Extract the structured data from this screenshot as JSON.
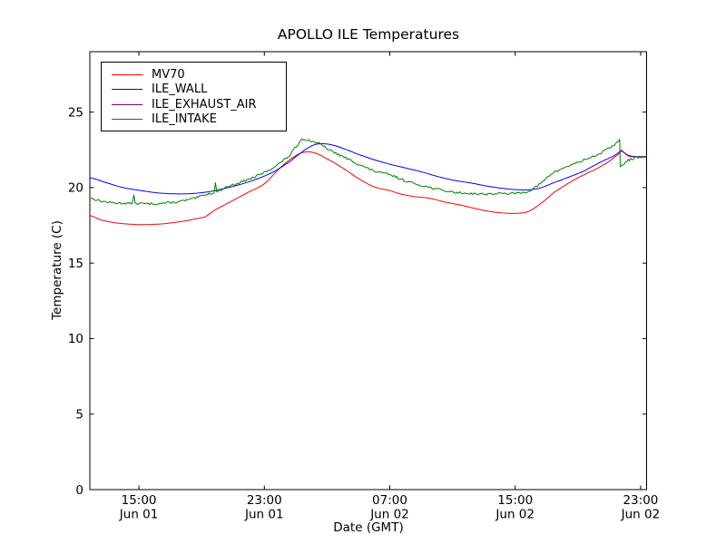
{
  "chart_data": {
    "type": "line",
    "title": "APOLLO ILE Temperatures",
    "xlabel": "Date (GMT)",
    "ylabel": "Temperature (C)",
    "background": "#ffffff",
    "frame_color": "#000000",
    "grid": false,
    "legend_position": "upper-left",
    "x_unit_hours_since": "Jun 01 00:00 GMT",
    "xlim": [
      11.87,
      47.38
    ],
    "ylim": [
      0,
      29
    ],
    "yticks": [
      0,
      5,
      10,
      15,
      20,
      25
    ],
    "xticks": [
      {
        "t": 15,
        "time": "15:00",
        "date": "Jun 01"
      },
      {
        "t": 23,
        "time": "23:00",
        "date": "Jun 01"
      },
      {
        "t": 31,
        "time": "07:00",
        "date": "Jun 02"
      },
      {
        "t": 39,
        "time": "15:00",
        "date": "Jun 02"
      },
      {
        "t": 47,
        "time": "23:00",
        "date": "Jun 02"
      }
    ],
    "series": [
      {
        "name": "MV70",
        "color": "#ff0000",
        "noise": 0,
        "points": [
          [
            11.87,
            18.15
          ],
          [
            12.6,
            17.85
          ],
          [
            13.6,
            17.65
          ],
          [
            15.0,
            17.55
          ],
          [
            16.5,
            17.6
          ],
          [
            18.0,
            17.8
          ],
          [
            19.2,
            18.05,
            1
          ],
          [
            19.9,
            18.55
          ],
          [
            20.9,
            19.1
          ],
          [
            22.0,
            19.7
          ],
          [
            23.0,
            20.25
          ],
          [
            24.0,
            21.3
          ],
          [
            25.0,
            22.1
          ],
          [
            25.6,
            22.35
          ],
          [
            26.2,
            22.3
          ],
          [
            27.0,
            21.9
          ],
          [
            28.0,
            21.3
          ],
          [
            29.0,
            20.6
          ],
          [
            30.0,
            20.05
          ],
          [
            31.0,
            19.8
          ],
          [
            31.8,
            19.55
          ],
          [
            32.6,
            19.4
          ],
          [
            33.5,
            19.3
          ],
          [
            34.5,
            19.05
          ],
          [
            35.5,
            18.85
          ],
          [
            36.3,
            18.65
          ],
          [
            37.2,
            18.45
          ],
          [
            38.2,
            18.32
          ],
          [
            39.2,
            18.3
          ],
          [
            39.9,
            18.45
          ],
          [
            40.7,
            19.0
          ],
          [
            41.5,
            19.7
          ],
          [
            42.5,
            20.35
          ],
          [
            43.5,
            20.9
          ],
          [
            44.1,
            21.2
          ],
          [
            44.8,
            21.6
          ],
          [
            45.2,
            21.9
          ],
          [
            45.68,
            22.3,
            1
          ],
          [
            45.78,
            22.45,
            1
          ],
          [
            46.2,
            22.1
          ],
          [
            46.8,
            22.03
          ],
          [
            47.38,
            22.02
          ]
        ]
      },
      {
        "name": "ILE_WALL",
        "color": "#0000ff",
        "noise": 0,
        "points": [
          [
            11.87,
            20.65
          ],
          [
            13.0,
            20.3
          ],
          [
            14.0,
            20.0
          ],
          [
            15.0,
            19.82
          ],
          [
            16.2,
            19.65
          ],
          [
            17.5,
            19.58
          ],
          [
            18.6,
            19.62
          ],
          [
            19.6,
            19.75
          ],
          [
            20.6,
            19.98
          ],
          [
            21.6,
            20.25
          ],
          [
            22.6,
            20.6
          ],
          [
            23.6,
            21.05
          ],
          [
            24.6,
            21.7
          ],
          [
            25.4,
            22.35
          ],
          [
            26.0,
            22.75
          ],
          [
            26.5,
            22.9
          ],
          [
            27.2,
            22.85
          ],
          [
            28.0,
            22.6
          ],
          [
            29.0,
            22.2
          ],
          [
            30.0,
            21.85
          ],
          [
            31.0,
            21.55
          ],
          [
            32.0,
            21.3
          ],
          [
            33.0,
            21.05
          ],
          [
            34.0,
            20.75
          ],
          [
            35.0,
            20.5
          ],
          [
            36.2,
            20.3
          ],
          [
            37.2,
            20.1
          ],
          [
            38.2,
            19.95
          ],
          [
            39.0,
            19.87
          ],
          [
            39.8,
            19.85
          ],
          [
            40.6,
            19.98
          ],
          [
            41.4,
            20.3
          ],
          [
            42.3,
            20.65
          ],
          [
            43.3,
            21.05
          ],
          [
            44.1,
            21.5
          ],
          [
            44.9,
            21.9
          ],
          [
            45.3,
            22.1
          ],
          [
            45.7,
            22.4,
            1
          ],
          [
            45.78,
            22.45,
            1
          ],
          [
            46.2,
            22.12
          ],
          [
            46.8,
            22.05
          ],
          [
            47.38,
            22.05
          ]
        ]
      },
      {
        "name": "ILE_EXHAUST_AIR",
        "color": "#800080",
        "noise": 0,
        "points": [
          [
            45.75,
            22.5,
            1
          ],
          [
            45.95,
            22.3
          ],
          [
            46.2,
            22.15
          ],
          [
            46.5,
            22.07
          ],
          [
            46.9,
            22.03
          ],
          [
            47.38,
            22.05
          ]
        ]
      },
      {
        "name": "ILE_INTAKE",
        "color": "#008000",
        "noise": 0.07,
        "points": [
          [
            11.87,
            19.3
          ],
          [
            12.6,
            19.1
          ],
          [
            13.5,
            18.98
          ],
          [
            14.6,
            18.95,
            1
          ],
          [
            14.68,
            19.6,
            1
          ],
          [
            14.76,
            18.95,
            1
          ],
          [
            15.6,
            18.93
          ],
          [
            16.6,
            18.97
          ],
          [
            17.6,
            19.08
          ],
          [
            18.6,
            19.3
          ],
          [
            19.3,
            19.55
          ],
          [
            19.8,
            19.68,
            1
          ],
          [
            19.88,
            20.3,
            1
          ],
          [
            19.96,
            19.72,
            1
          ],
          [
            20.6,
            20.05
          ],
          [
            21.6,
            20.4
          ],
          [
            22.6,
            20.8
          ],
          [
            23.6,
            21.35
          ],
          [
            24.6,
            22.1
          ],
          [
            25.1,
            22.8
          ],
          [
            25.4,
            23.2
          ],
          [
            25.9,
            23.1
          ],
          [
            26.5,
            22.9
          ],
          [
            27.2,
            22.45
          ],
          [
            28.0,
            22.05
          ],
          [
            29.0,
            21.55
          ],
          [
            30.0,
            21.1
          ],
          [
            31.0,
            20.85
          ],
          [
            32.0,
            20.45
          ],
          [
            33.0,
            20.15
          ],
          [
            34.0,
            19.9
          ],
          [
            35.0,
            19.7
          ],
          [
            36.0,
            19.62
          ],
          [
            37.0,
            19.58
          ],
          [
            38.0,
            19.6
          ],
          [
            39.0,
            19.62
          ],
          [
            39.8,
            19.75
          ],
          [
            40.6,
            20.25
          ],
          [
            41.3,
            20.9
          ],
          [
            42.2,
            21.35
          ],
          [
            43.2,
            21.75
          ],
          [
            44.2,
            22.15
          ],
          [
            45.0,
            22.6
          ],
          [
            45.45,
            22.95
          ],
          [
            45.66,
            23.15,
            1
          ],
          [
            45.7,
            21.35,
            1
          ],
          [
            45.9,
            21.55
          ],
          [
            46.2,
            21.8
          ],
          [
            46.6,
            21.95
          ],
          [
            47.0,
            22.0
          ],
          [
            47.38,
            22.05
          ]
        ]
      }
    ],
    "annotations": {
      "event": "all traces step/reset near 21:45 Jun 02; ILE_EXHAUST_AIR data begins there"
    }
  },
  "layout_note": ""
}
